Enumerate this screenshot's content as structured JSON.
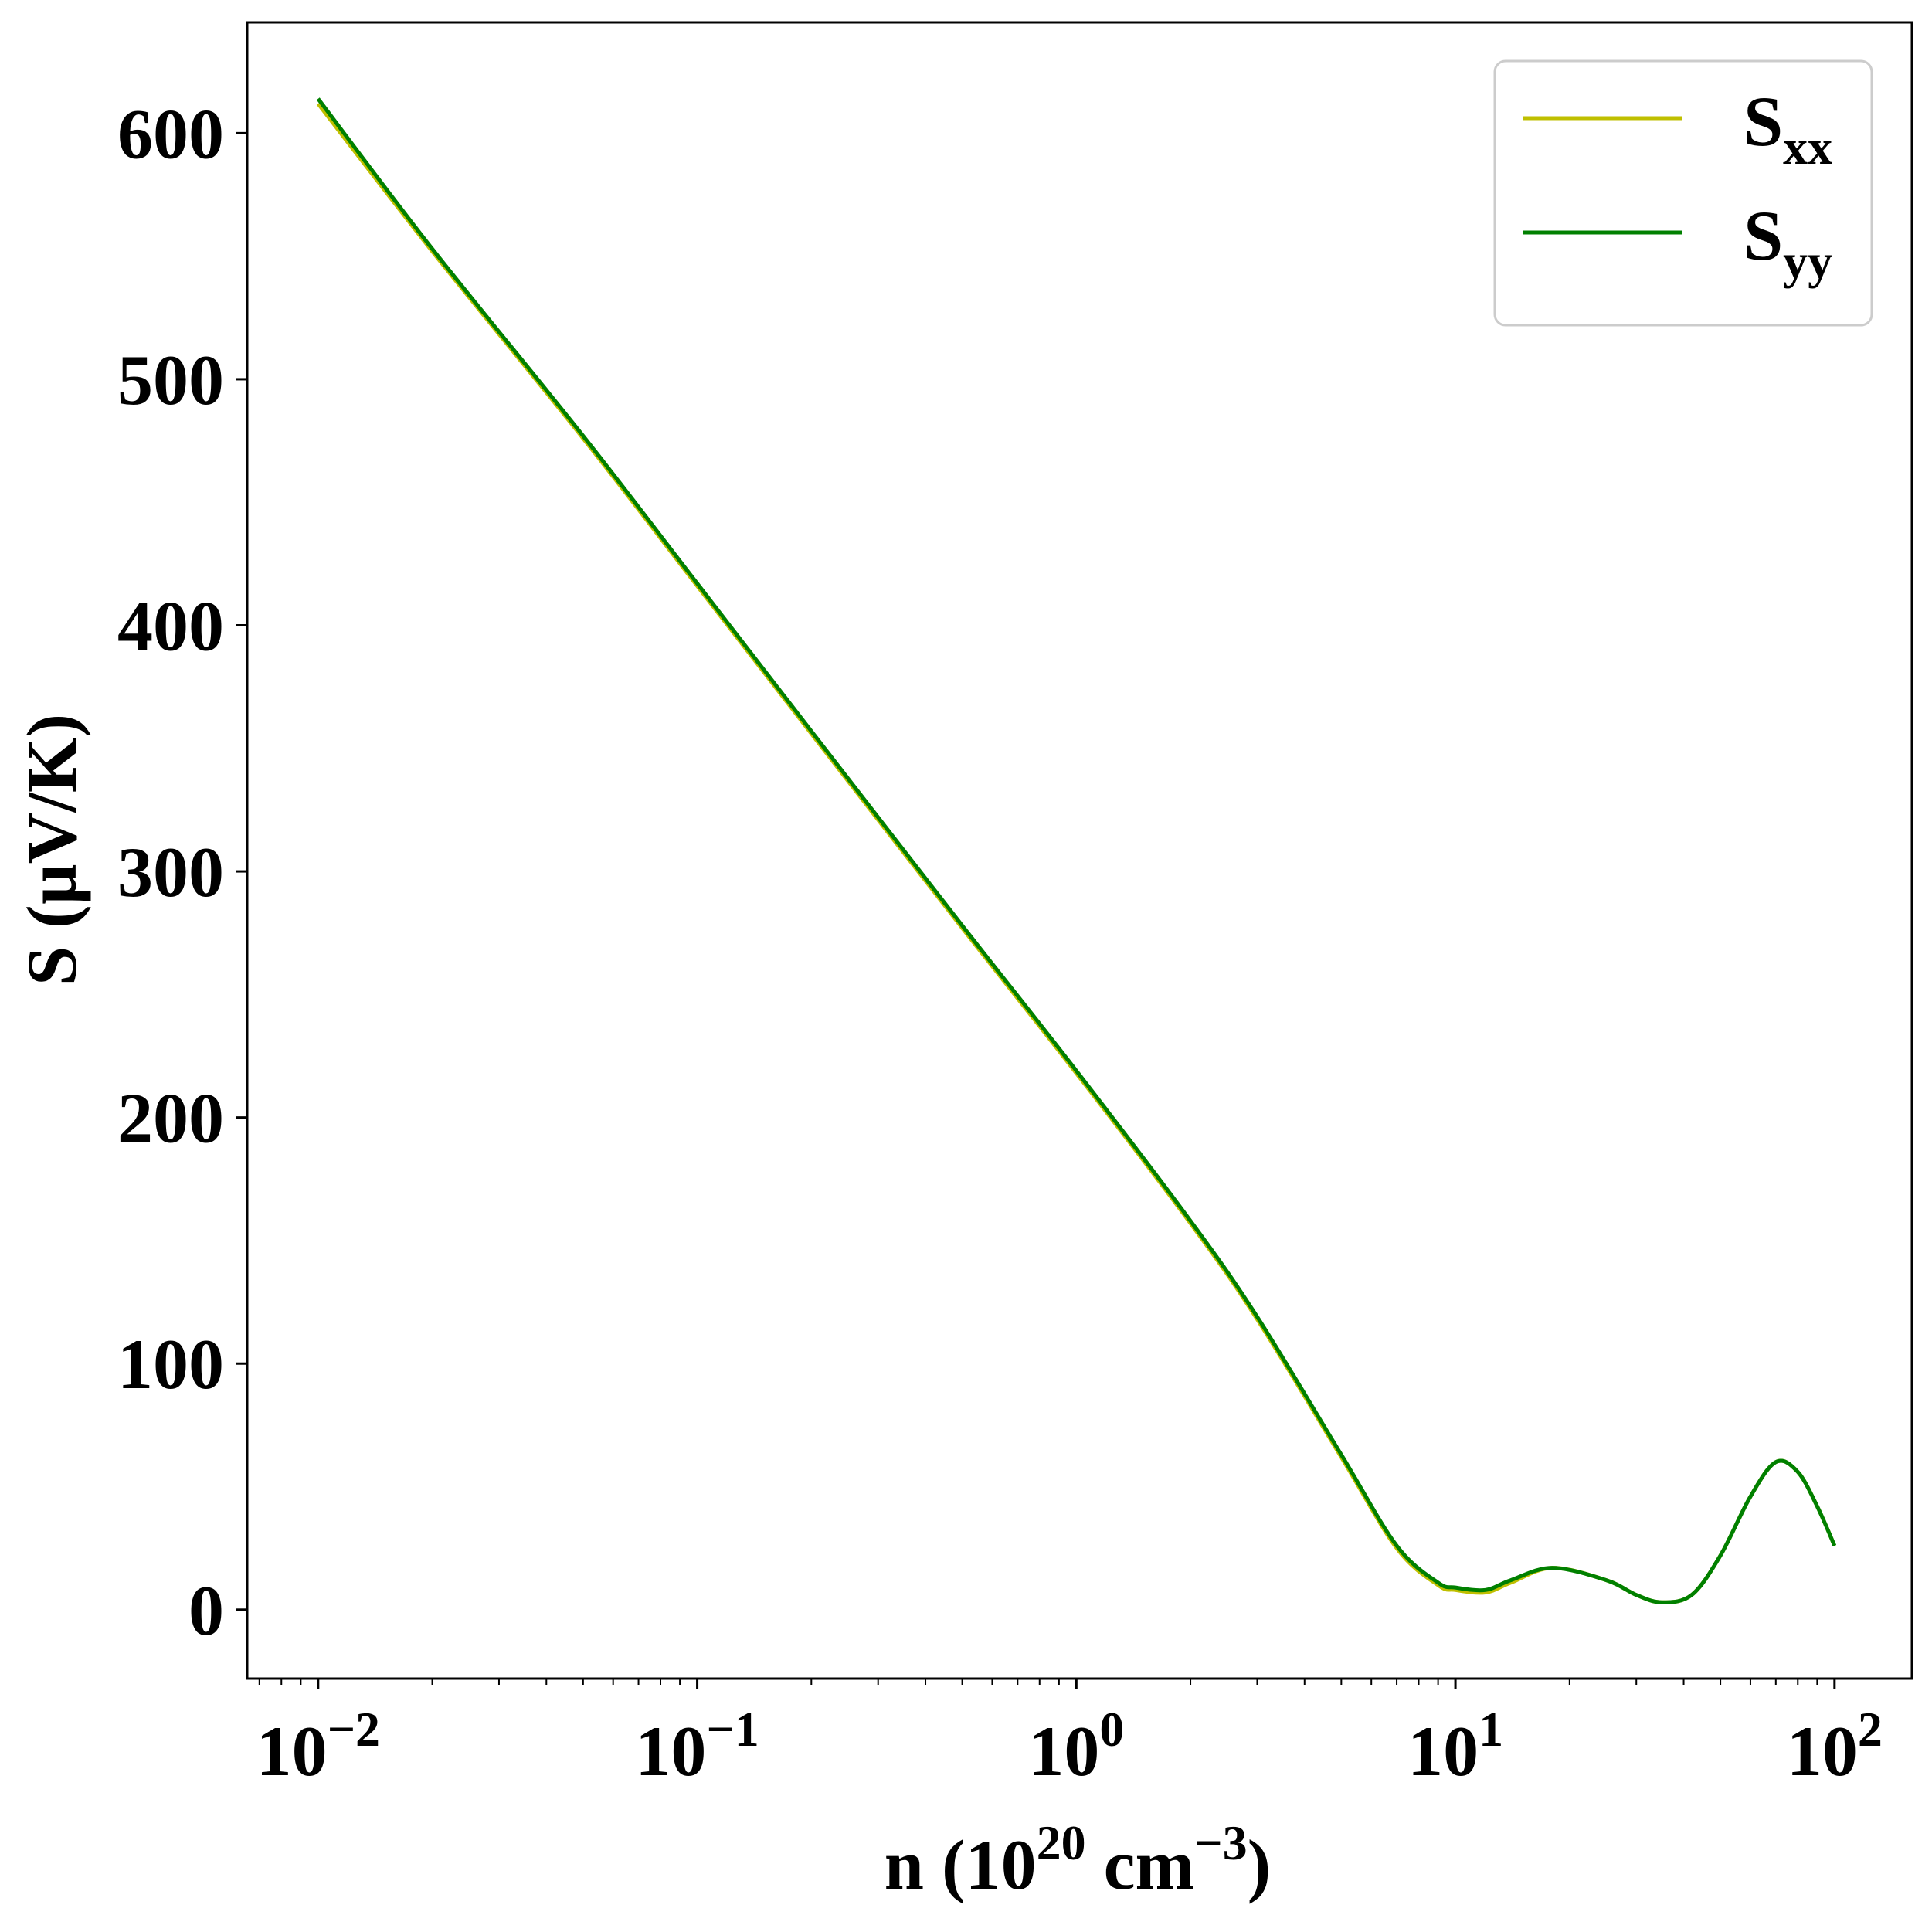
{
  "chart_data": {
    "type": "line",
    "xscale": "log",
    "xlim": [
      0.0065,
      160
    ],
    "ylim": [
      -28,
      645
    ],
    "xlabel": {
      "main": "n (10",
      "exp1": "20",
      "mid": " cm",
      "exp2": "−3",
      "end": ")"
    },
    "ylabel": "S (µV/K)",
    "x_ticks": [
      {
        "value": 0.01,
        "base": "10",
        "exp": "−2"
      },
      {
        "value": 0.1,
        "base": "10",
        "exp": "−1"
      },
      {
        "value": 1,
        "base": "10",
        "exp": "0"
      },
      {
        "value": 10,
        "base": "10",
        "exp": "1"
      },
      {
        "value": 100,
        "base": "10",
        "exp": "2"
      }
    ],
    "y_ticks": [
      0,
      100,
      200,
      300,
      400,
      500,
      600
    ],
    "legend": {
      "position": "upper right"
    },
    "series": [
      {
        "name": "S",
        "sub": "xx",
        "color": "#bfbf00",
        "x": [
          0.01,
          0.02,
          0.05,
          0.1,
          0.2,
          0.5,
          1,
          2,
          3,
          5,
          7,
          9,
          10,
          12,
          14,
          18,
          25,
          30,
          35,
          42,
          50,
          60,
          70,
          80,
          90,
          100
        ],
        "y": [
          612,
          552,
          476,
          416,
          356,
          277,
          218,
          157,
          118,
          62,
          25,
          10,
          8,
          7,
          11,
          17,
          12,
          6,
          3,
          6,
          22,
          46,
          60,
          56,
          42,
          26
        ]
      },
      {
        "name": "S",
        "sub": "yy",
        "color": "#008000",
        "x": [
          0.01,
          0.02,
          0.05,
          0.1,
          0.2,
          0.5,
          1,
          2,
          3,
          5,
          7,
          9,
          10,
          12,
          14,
          18,
          25,
          30,
          35,
          42,
          50,
          60,
          70,
          80,
          90,
          100
        ],
        "y": [
          614,
          553,
          477,
          417,
          357,
          278,
          219,
          158,
          119,
          63,
          26,
          11,
          9,
          8,
          12,
          17,
          12,
          6,
          3,
          6,
          22,
          46,
          60,
          56,
          42,
          26
        ]
      }
    ]
  }
}
